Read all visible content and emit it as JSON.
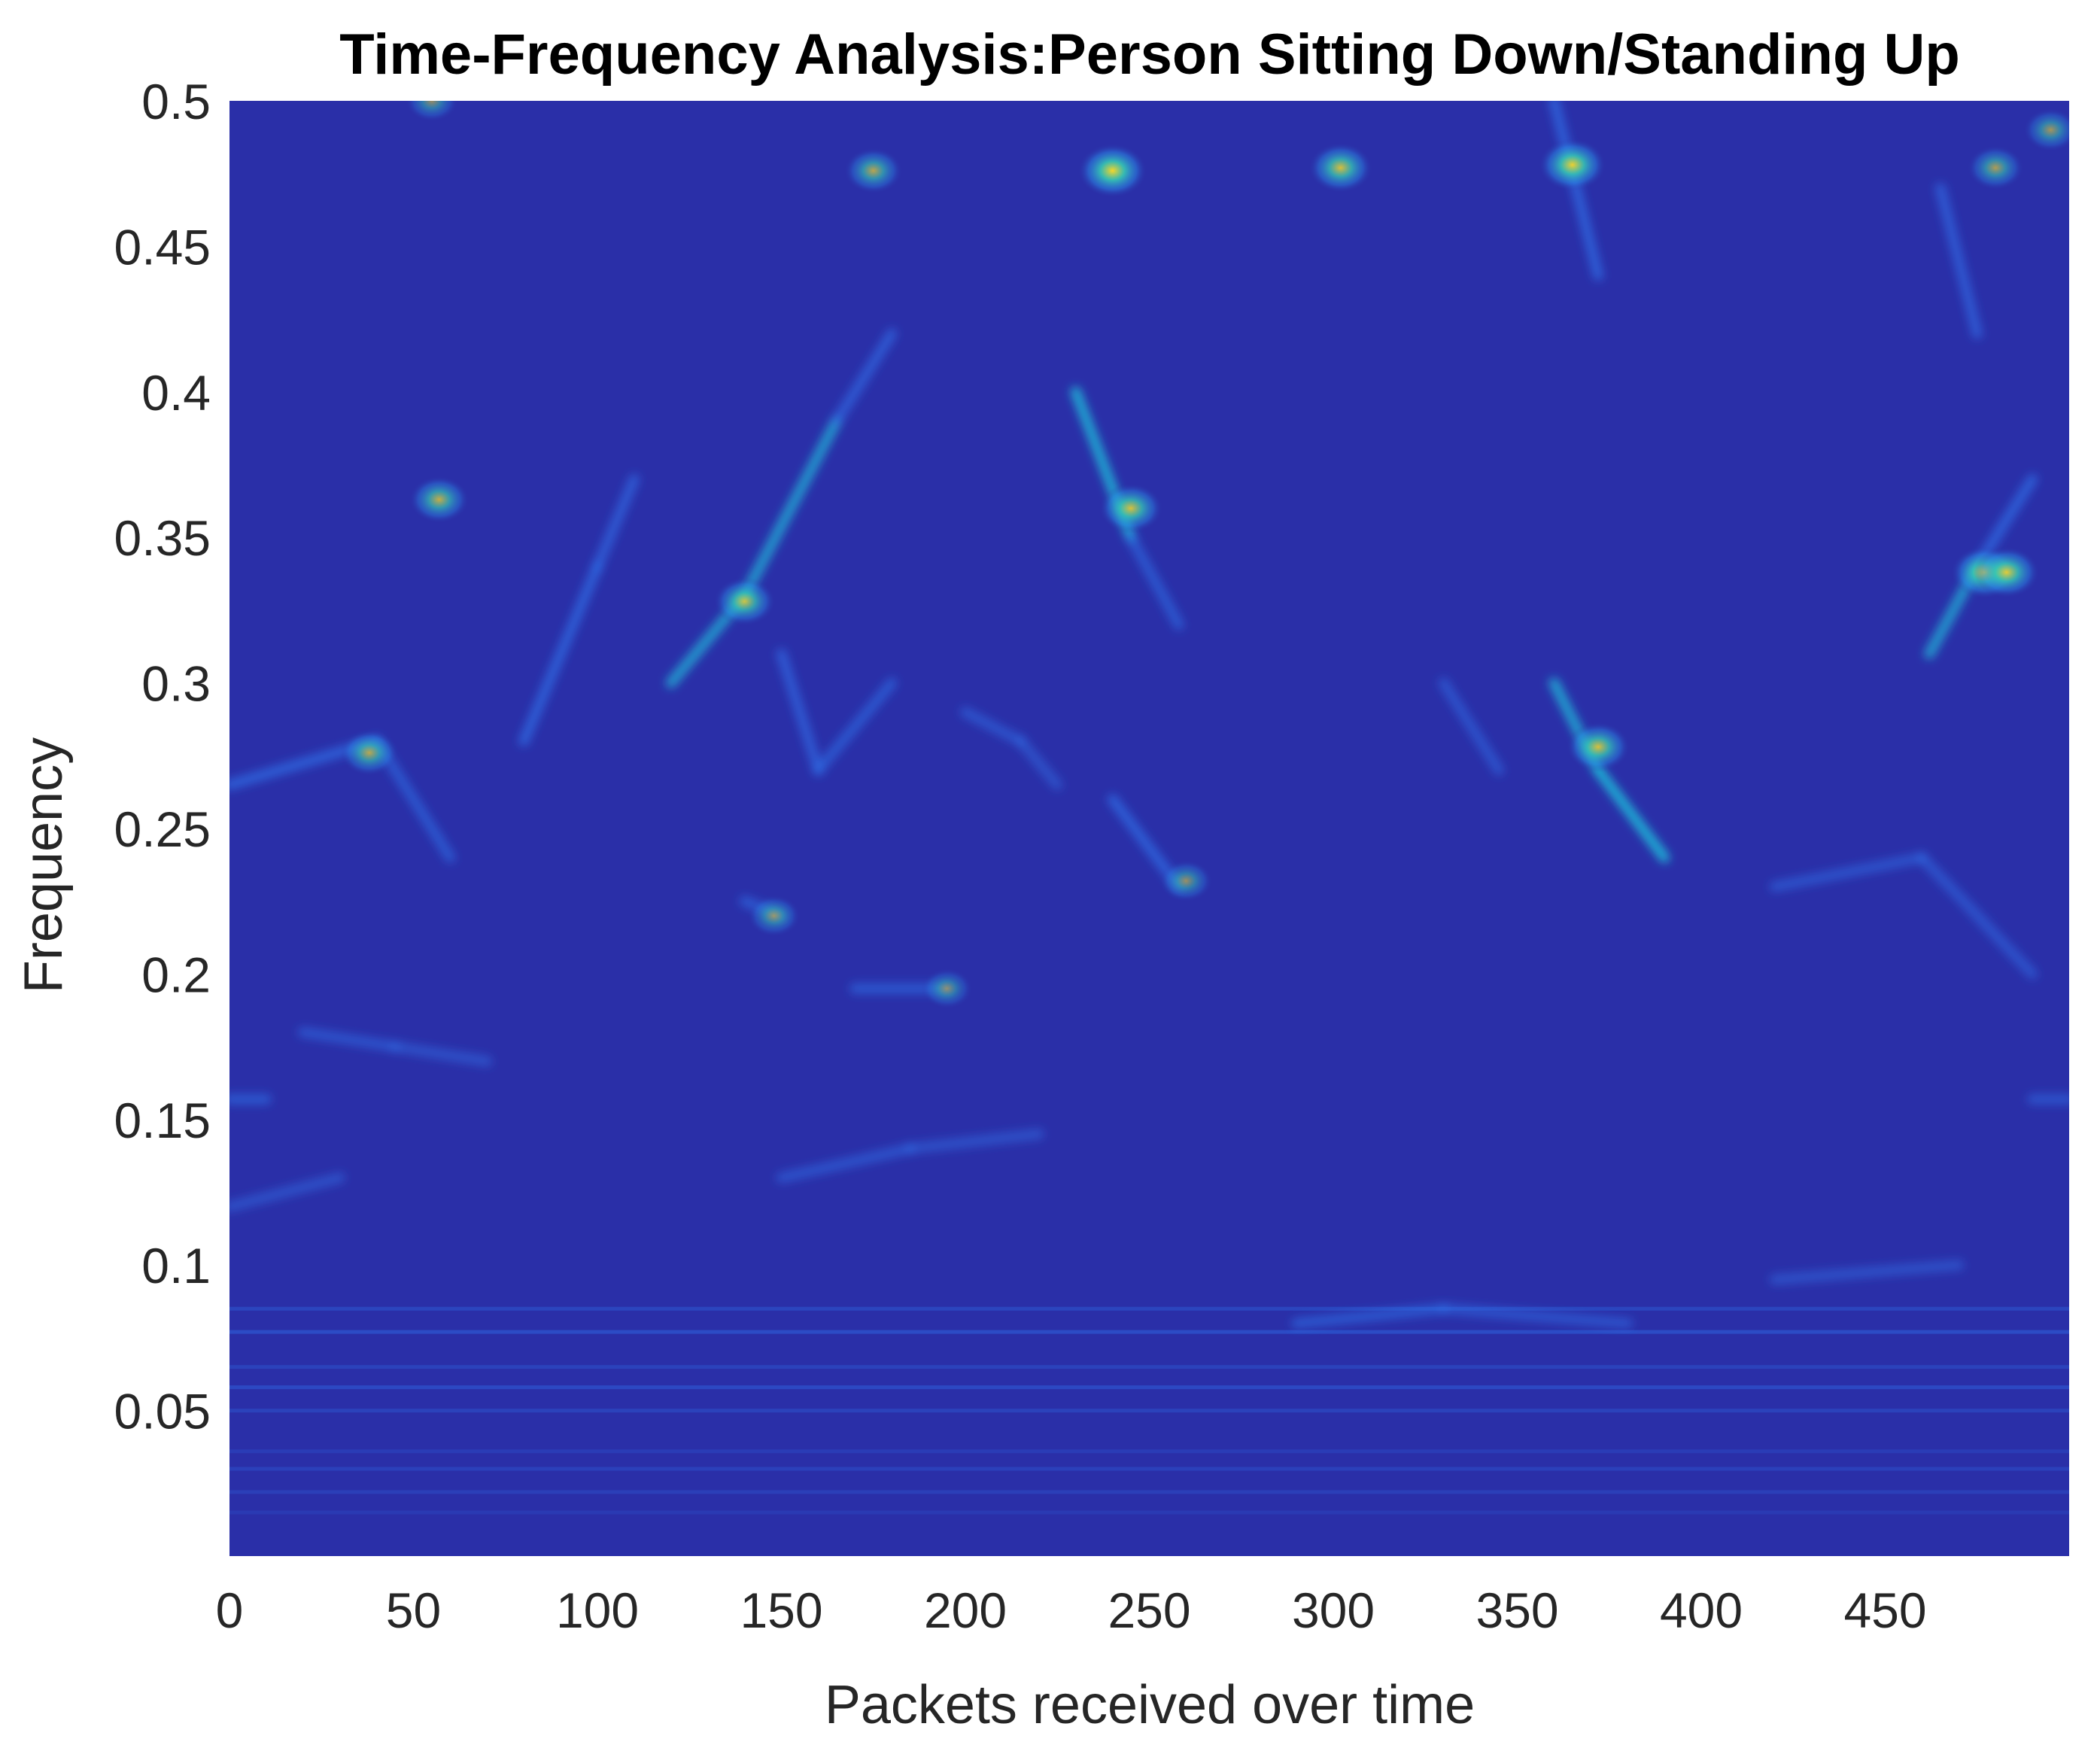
{
  "chart_data": {
    "type": "heatmap",
    "title": "Time-Frequency Analysis:Person Sitting Down/Standing Up",
    "xlabel": "Packets received over time",
    "ylabel": "Frequency",
    "xlim": [
      0,
      500
    ],
    "ylim": [
      0,
      0.5
    ],
    "x_ticks": [
      "0",
      "50",
      "100",
      "150",
      "200",
      "250",
      "300",
      "350",
      "400",
      "450"
    ],
    "x_tick_values": [
      0,
      50,
      100,
      150,
      200,
      250,
      300,
      350,
      400,
      450
    ],
    "y_ticks": [
      "0.05",
      "0.1",
      "0.15",
      "0.2",
      "0.25",
      "0.3",
      "0.35",
      "0.4",
      "0.45",
      "0.5"
    ],
    "y_tick_values": [
      0.05,
      0.1,
      0.15,
      0.2,
      0.25,
      0.3,
      0.35,
      0.4,
      0.45,
      0.5
    ],
    "colormap": "parula",
    "background_color": "#2a2fa8",
    "colors": {
      "low": "#2b2fa6",
      "mid": "#2f6fe8",
      "high": "#1fb8d8",
      "peak": "#f6d628"
    },
    "horizontal_bands": [
      {
        "y": 0.015,
        "intensity": 0.18
      },
      {
        "y": 0.022,
        "intensity": 0.25
      },
      {
        "y": 0.03,
        "intensity": 0.28
      },
      {
        "y": 0.036,
        "intensity": 0.22
      },
      {
        "y": 0.05,
        "intensity": 0.3
      },
      {
        "y": 0.058,
        "intensity": 0.4
      },
      {
        "y": 0.065,
        "intensity": 0.3
      },
      {
        "y": 0.077,
        "intensity": 0.45
      },
      {
        "y": 0.085,
        "intensity": 0.35
      }
    ],
    "ridges": [
      {
        "x1": 0,
        "y1": 0.265,
        "x2": 40,
        "y2": 0.28,
        "intensity": 0.55
      },
      {
        "x1": 40,
        "y1": 0.28,
        "x2": 60,
        "y2": 0.24,
        "intensity": 0.45
      },
      {
        "x1": 80,
        "y1": 0.28,
        "x2": 100,
        "y2": 0.34,
        "intensity": 0.55
      },
      {
        "x1": 100,
        "y1": 0.34,
        "x2": 110,
        "y2": 0.37,
        "intensity": 0.5
      },
      {
        "x1": 120,
        "y1": 0.3,
        "x2": 140,
        "y2": 0.33,
        "intensity": 0.6
      },
      {
        "x1": 140,
        "y1": 0.33,
        "x2": 165,
        "y2": 0.39,
        "intensity": 0.6
      },
      {
        "x1": 165,
        "y1": 0.39,
        "x2": 180,
        "y2": 0.42,
        "intensity": 0.5
      },
      {
        "x1": 150,
        "y1": 0.31,
        "x2": 160,
        "y2": 0.27,
        "intensity": 0.5
      },
      {
        "x1": 160,
        "y1": 0.27,
        "x2": 180,
        "y2": 0.3,
        "intensity": 0.45
      },
      {
        "x1": 230,
        "y1": 0.4,
        "x2": 245,
        "y2": 0.35,
        "intensity": 0.7
      },
      {
        "x1": 245,
        "y1": 0.35,
        "x2": 258,
        "y2": 0.32,
        "intensity": 0.45
      },
      {
        "x1": 240,
        "y1": 0.26,
        "x2": 258,
        "y2": 0.23,
        "intensity": 0.55
      },
      {
        "x1": 330,
        "y1": 0.3,
        "x2": 345,
        "y2": 0.27,
        "intensity": 0.4
      },
      {
        "x1": 360,
        "y1": 0.3,
        "x2": 372,
        "y2": 0.27,
        "intensity": 0.65
      },
      {
        "x1": 372,
        "y1": 0.27,
        "x2": 390,
        "y2": 0.24,
        "intensity": 0.75
      },
      {
        "x1": 360,
        "y1": 0.5,
        "x2": 372,
        "y2": 0.44,
        "intensity": 0.55
      },
      {
        "x1": 462,
        "y1": 0.31,
        "x2": 475,
        "y2": 0.34,
        "intensity": 0.6
      },
      {
        "x1": 475,
        "y1": 0.34,
        "x2": 490,
        "y2": 0.37,
        "intensity": 0.55
      },
      {
        "x1": 465,
        "y1": 0.47,
        "x2": 475,
        "y2": 0.42,
        "intensity": 0.5
      },
      {
        "x1": 20,
        "y1": 0.18,
        "x2": 45,
        "y2": 0.175,
        "intensity": 0.4
      },
      {
        "x1": 45,
        "y1": 0.175,
        "x2": 70,
        "y2": 0.17,
        "intensity": 0.35
      },
      {
        "x1": 170,
        "y1": 0.195,
        "x2": 195,
        "y2": 0.195,
        "intensity": 0.45
      },
      {
        "x1": 140,
        "y1": 0.225,
        "x2": 150,
        "y2": 0.22,
        "intensity": 0.45
      },
      {
        "x1": 420,
        "y1": 0.23,
        "x2": 460,
        "y2": 0.24,
        "intensity": 0.4
      },
      {
        "x1": 460,
        "y1": 0.24,
        "x2": 490,
        "y2": 0.2,
        "intensity": 0.4
      },
      {
        "x1": 0,
        "y1": 0.157,
        "x2": 10,
        "y2": 0.157,
        "intensity": 0.45
      },
      {
        "x1": 490,
        "y1": 0.157,
        "x2": 500,
        "y2": 0.157,
        "intensity": 0.4
      },
      {
        "x1": 0,
        "y1": 0.12,
        "x2": 30,
        "y2": 0.13,
        "intensity": 0.35
      },
      {
        "x1": 150,
        "y1": 0.13,
        "x2": 185,
        "y2": 0.14,
        "intensity": 0.4
      },
      {
        "x1": 185,
        "y1": 0.14,
        "x2": 220,
        "y2": 0.145,
        "intensity": 0.35
      },
      {
        "x1": 290,
        "y1": 0.08,
        "x2": 330,
        "y2": 0.085,
        "intensity": 0.45
      },
      {
        "x1": 330,
        "y1": 0.085,
        "x2": 380,
        "y2": 0.08,
        "intensity": 0.4
      },
      {
        "x1": 420,
        "y1": 0.095,
        "x2": 470,
        "y2": 0.1,
        "intensity": 0.35
      },
      {
        "x1": 200,
        "y1": 0.29,
        "x2": 215,
        "y2": 0.28,
        "intensity": 0.4
      },
      {
        "x1": 215,
        "y1": 0.28,
        "x2": 225,
        "y2": 0.265,
        "intensity": 0.35
      }
    ],
    "hotspots": [
      {
        "x": 240,
        "y": 0.476,
        "intensity": 1.0
      },
      {
        "x": 365,
        "y": 0.478,
        "intensity": 0.95
      },
      {
        "x": 302,
        "y": 0.477,
        "intensity": 0.85
      },
      {
        "x": 175,
        "y": 0.476,
        "intensity": 0.7
      },
      {
        "x": 140,
        "y": 0.328,
        "intensity": 0.8
      },
      {
        "x": 245,
        "y": 0.36,
        "intensity": 0.85
      },
      {
        "x": 57,
        "y": 0.363,
        "intensity": 0.75
      },
      {
        "x": 372,
        "y": 0.278,
        "intensity": 0.85
      },
      {
        "x": 477,
        "y": 0.338,
        "intensity": 0.95
      },
      {
        "x": 483,
        "y": 0.338,
        "intensity": 0.9
      },
      {
        "x": 38,
        "y": 0.276,
        "intensity": 0.7
      },
      {
        "x": 480,
        "y": 0.477,
        "intensity": 0.65
      },
      {
        "x": 495,
        "y": 0.49,
        "intensity": 0.6
      },
      {
        "x": 55,
        "y": 0.5,
        "intensity": 0.55
      },
      {
        "x": 195,
        "y": 0.195,
        "intensity": 0.5
      },
      {
        "x": 260,
        "y": 0.232,
        "intensity": 0.55
      },
      {
        "x": 148,
        "y": 0.22,
        "intensity": 0.55
      }
    ]
  }
}
